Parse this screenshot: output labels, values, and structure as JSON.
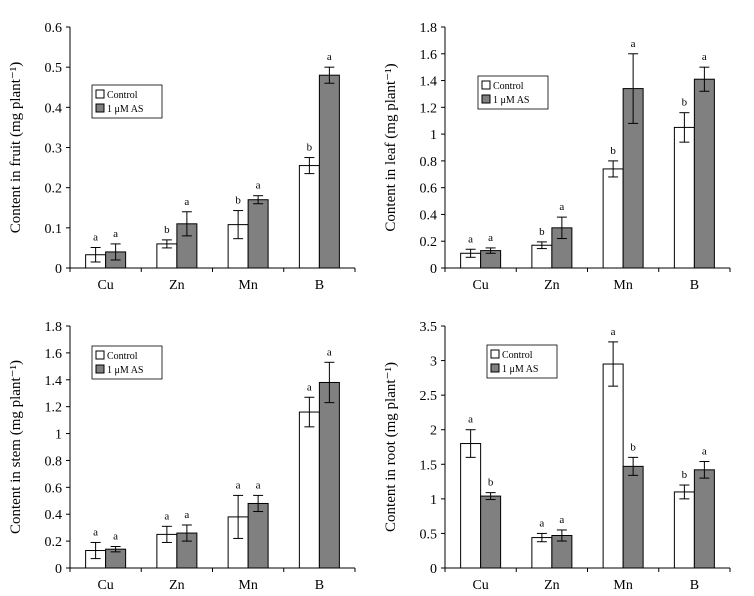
{
  "colors": {
    "control": "#ffffff",
    "treated": "#808080",
    "stroke": "#000000"
  },
  "legend": {
    "control": "Control",
    "treated": "1 μM AS"
  },
  "chart_data": [
    {
      "type": "bar",
      "ylabel": "Content in fruit (mg plant⁻¹)",
      "ylim": [
        0,
        0.6
      ],
      "yticks": [
        "0",
        "0.1",
        "0.2",
        "0.3",
        "0.4",
        "0.5",
        "0.6"
      ],
      "categories": [
        "Cu",
        "Zn",
        "Mn",
        "B"
      ],
      "series": [
        {
          "name": "Control",
          "values": [
            0.033,
            0.06,
            0.108,
            0.255
          ],
          "errors": [
            0.018,
            0.01,
            0.035,
            0.02
          ],
          "labels": [
            "a",
            "b",
            "b",
            "b"
          ]
        },
        {
          "name": "1 μM AS",
          "values": [
            0.04,
            0.11,
            0.17,
            0.48
          ],
          "errors": [
            0.02,
            0.03,
            0.01,
            0.02
          ],
          "labels": [
            "a",
            "a",
            "a",
            "a"
          ]
        }
      ],
      "legend_position": "top-left"
    },
    {
      "type": "bar",
      "ylabel": "Content in leaf (mg plant⁻¹)",
      "ylim": [
        0,
        1.8
      ],
      "yticks": [
        "0",
        "0.2",
        "0.4",
        "0.6",
        "0.8",
        "1",
        "1.2",
        "1.4",
        "1.6",
        "1.8"
      ],
      "categories": [
        "Cu",
        "Zn",
        "Mn",
        "B"
      ],
      "series": [
        {
          "name": "Control",
          "values": [
            0.11,
            0.17,
            0.74,
            1.05
          ],
          "errors": [
            0.03,
            0.025,
            0.06,
            0.11
          ],
          "labels": [
            "a",
            "b",
            "b",
            "b"
          ]
        },
        {
          "name": "1 μM AS",
          "values": [
            0.13,
            0.3,
            1.34,
            1.41
          ],
          "errors": [
            0.02,
            0.08,
            0.26,
            0.09
          ],
          "labels": [
            "a",
            "a",
            "a",
            "a"
          ]
        }
      ],
      "legend_position": "top-center"
    },
    {
      "type": "bar",
      "ylabel": "Content in stem (mg plant⁻¹)",
      "ylim": [
        0,
        1.8
      ],
      "yticks": [
        "0",
        "0.2",
        "0.4",
        "0.6",
        "0.8",
        "1",
        "1.2",
        "1.4",
        "1.6",
        "1.8"
      ],
      "categories": [
        "Cu",
        "Zn",
        "Mn",
        "B"
      ],
      "series": [
        {
          "name": "Control",
          "values": [
            0.13,
            0.25,
            0.38,
            1.16
          ],
          "errors": [
            0.06,
            0.06,
            0.16,
            0.11
          ],
          "labels": [
            "a",
            "a",
            "a",
            "a"
          ]
        },
        {
          "name": "1 μM AS",
          "values": [
            0.14,
            0.26,
            0.48,
            1.38
          ],
          "errors": [
            0.02,
            0.06,
            0.06,
            0.15
          ],
          "labels": [
            "a",
            "a",
            "a",
            "a"
          ]
        }
      ],
      "legend_position": "top-left"
    },
    {
      "type": "bar",
      "ylabel": "Content in root (mg plant⁻¹)",
      "ylim": [
        0,
        3.5
      ],
      "yticks": [
        "0",
        "0.5",
        "1",
        "1.5",
        "2",
        "2.5",
        "3",
        "3.5"
      ],
      "categories": [
        "Cu",
        "Zn",
        "Mn",
        "B"
      ],
      "series": [
        {
          "name": "Control",
          "values": [
            1.8,
            0.44,
            2.95,
            1.1
          ],
          "errors": [
            0.2,
            0.06,
            0.32,
            0.1
          ],
          "labels": [
            "a",
            "a",
            "a",
            "b"
          ]
        },
        {
          "name": "1 μM AS",
          "values": [
            1.04,
            0.47,
            1.47,
            1.42
          ],
          "errors": [
            0.05,
            0.08,
            0.13,
            0.12
          ],
          "labels": [
            "b",
            "a",
            "b",
            "a"
          ]
        }
      ],
      "legend_position": "top-center"
    }
  ]
}
